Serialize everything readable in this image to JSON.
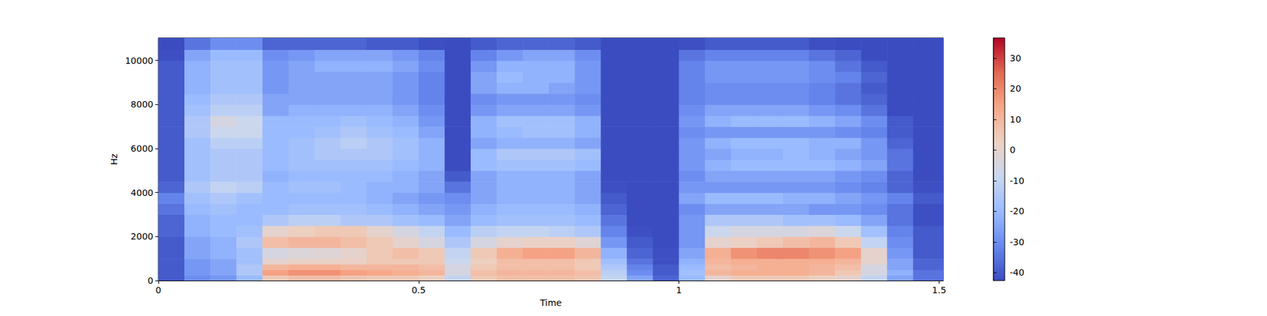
{
  "chart_data": {
    "type": "heatmap",
    "x_label": "Time",
    "y_label": "Hz",
    "xlim": [
      0,
      1.508
    ],
    "xticks": [
      0,
      0.5,
      1,
      1.5
    ],
    "ylim": [
      0,
      11025
    ],
    "yticks": [
      0,
      2000,
      4000,
      6000,
      8000,
      10000
    ],
    "time_edges": [
      0,
      0.05,
      0.1,
      0.15,
      0.2,
      0.25,
      0.3,
      0.35,
      0.4,
      0.45,
      0.5,
      0.55,
      0.6,
      0.65,
      0.7,
      0.75,
      0.8,
      0.85,
      0.9,
      0.95,
      1.0,
      1.05,
      1.1,
      1.15,
      1.2,
      1.25,
      1.3,
      1.35,
      1.4,
      1.45,
      1.508
    ],
    "freq_edges": [
      0,
      250,
      500,
      750,
      1000,
      1500,
      2000,
      2500,
      3000,
      3500,
      4000,
      4500,
      5000,
      5500,
      6000,
      6500,
      7000,
      7500,
      8000,
      8500,
      9000,
      9500,
      10000,
      10500,
      11025
    ],
    "cells": [
      [
        -40,
        -30,
        -28,
        -20,
        5,
        8,
        8,
        6,
        5,
        5,
        3,
        -10,
        5,
        8,
        8,
        8,
        6,
        -10,
        -25,
        -38,
        -20,
        0,
        5,
        5,
        5,
        3,
        0,
        -10,
        -25,
        -35
      ],
      [
        -40,
        -28,
        -25,
        -15,
        15,
        18,
        18,
        15,
        14,
        12,
        10,
        -5,
        8,
        10,
        10,
        10,
        8,
        -12,
        -30,
        -40,
        -18,
        10,
        12,
        12,
        12,
        10,
        5,
        -5,
        -22,
        -35
      ],
      [
        -40,
        -28,
        -25,
        -15,
        10,
        12,
        12,
        10,
        10,
        10,
        8,
        -5,
        5,
        8,
        8,
        8,
        5,
        -15,
        -32,
        -40,
        -20,
        8,
        10,
        12,
        12,
        10,
        8,
        -5,
        -25,
        -38
      ],
      [
        -40,
        -28,
        -25,
        -18,
        0,
        2,
        2,
        2,
        5,
        5,
        5,
        -8,
        3,
        8,
        8,
        8,
        5,
        -18,
        -35,
        -42,
        -22,
        10,
        12,
        12,
        12,
        12,
        10,
        0,
        -25,
        -38
      ],
      [
        -40,
        -25,
        -22,
        -18,
        -5,
        -3,
        -2,
        0,
        5,
        8,
        5,
        -10,
        5,
        12,
        15,
        15,
        10,
        -22,
        -38,
        -42,
        -25,
        12,
        18,
        20,
        20,
        18,
        15,
        0,
        -28,
        -40
      ],
      [
        -40,
        -25,
        -22,
        -15,
        8,
        10,
        10,
        8,
        5,
        0,
        -5,
        -15,
        -5,
        0,
        2,
        2,
        -2,
        -28,
        -40,
        -43,
        -28,
        0,
        2,
        5,
        8,
        10,
        5,
        -10,
        -30,
        -40
      ],
      [
        -38,
        -22,
        -20,
        -18,
        0,
        3,
        5,
        5,
        0,
        -5,
        -10,
        -20,
        -12,
        -10,
        -10,
        -12,
        -15,
        -32,
        -42,
        -43,
        -28,
        -8,
        -5,
        -5,
        -5,
        -3,
        -8,
        -18,
        -32,
        -40
      ],
      [
        -38,
        -22,
        -20,
        -20,
        -15,
        -12,
        -12,
        -15,
        -15,
        -18,
        -20,
        -25,
        -20,
        -18,
        -18,
        -18,
        -20,
        -35,
        -43,
        -43,
        -28,
        -15,
        -15,
        -15,
        -18,
        -18,
        -20,
        -25,
        -35,
        -42
      ],
      [
        -35,
        -20,
        -18,
        -20,
        -20,
        -18,
        -18,
        -18,
        -20,
        -22,
        -25,
        -28,
        -22,
        -20,
        -20,
        -20,
        -22,
        -38,
        -43,
        -43,
        -30,
        -25,
        -25,
        -25,
        -25,
        -28,
        -28,
        -30,
        -35,
        -42
      ],
      [
        -32,
        -18,
        -15,
        -18,
        -20,
        -20,
        -20,
        -20,
        -22,
        -25,
        -28,
        -30,
        -25,
        -22,
        -22,
        -22,
        -25,
        -40,
        -43,
        -43,
        -25,
        -20,
        -20,
        -20,
        -22,
        -22,
        -25,
        -28,
        -32,
        -40
      ],
      [
        -38,
        -15,
        -10,
        -12,
        -20,
        -18,
        -18,
        -20,
        -22,
        -22,
        -25,
        -35,
        -25,
        -22,
        -22,
        -22,
        -25,
        -42,
        -43,
        -43,
        -28,
        -28,
        -28,
        -28,
        -28,
        -28,
        -30,
        -32,
        -38,
        -42
      ],
      [
        -40,
        -18,
        -15,
        -15,
        -22,
        -20,
        -20,
        -20,
        -20,
        -22,
        -25,
        -40,
        -25,
        -22,
        -22,
        -22,
        -25,
        -43,
        -43,
        -43,
        -30,
        -25,
        -25,
        -25,
        -25,
        -25,
        -28,
        -30,
        -38,
        -43
      ],
      [
        -40,
        -18,
        -15,
        -15,
        -20,
        -18,
        -18,
        -18,
        -18,
        -20,
        -22,
        -43,
        -20,
        -18,
        -18,
        -18,
        -20,
        -43,
        -43,
        -43,
        -28,
        -22,
        -20,
        -20,
        -20,
        -20,
        -22,
        -25,
        -35,
        -43
      ],
      [
        -40,
        -18,
        -15,
        -15,
        -20,
        -18,
        -15,
        -15,
        -15,
        -18,
        -22,
        -43,
        -20,
        -15,
        -15,
        -15,
        -18,
        -43,
        -43,
        -43,
        -28,
        -25,
        -22,
        -22,
        -20,
        -22,
        -25,
        -28,
        -35,
        -43
      ],
      [
        -40,
        -18,
        -12,
        -12,
        -20,
        -18,
        -15,
        -12,
        -15,
        -18,
        -22,
        -43,
        -25,
        -22,
        -22,
        -22,
        -25,
        -43,
        -43,
        -43,
        -28,
        -22,
        -20,
        -20,
        -20,
        -22,
        -22,
        -28,
        -38,
        -43
      ],
      [
        -40,
        -15,
        -8,
        -8,
        -20,
        -20,
        -18,
        -15,
        -18,
        -20,
        -25,
        -43,
        -22,
        -20,
        -18,
        -18,
        -22,
        -43,
        -43,
        -43,
        -30,
        -28,
        -28,
        -28,
        -28,
        -28,
        -30,
        -32,
        -40,
        -43
      ],
      [
        -40,
        -15,
        -5,
        -8,
        -20,
        -20,
        -20,
        -18,
        -20,
        -22,
        -28,
        -43,
        -22,
        -18,
        -18,
        -18,
        -22,
        -43,
        -43,
        -43,
        -28,
        -22,
        -20,
        -20,
        -20,
        -22,
        -25,
        -30,
        -40,
        -43
      ],
      [
        -40,
        -18,
        -12,
        -12,
        -25,
        -22,
        -22,
        -22,
        -22,
        -25,
        -30,
        -43,
        -28,
        -25,
        -25,
        -25,
        -28,
        -43,
        -43,
        -43,
        -30,
        -25,
        -25,
        -25,
        -25,
        -28,
        -30,
        -35,
        -43,
        -43
      ],
      [
        -40,
        -20,
        -15,
        -15,
        -25,
        -25,
        -25,
        -25,
        -25,
        -28,
        -32,
        -43,
        -30,
        -28,
        -28,
        -28,
        -30,
        -43,
        -43,
        -43,
        -32,
        -30,
        -30,
        -30,
        -30,
        -32,
        -35,
        -38,
        -43,
        -43
      ],
      [
        -40,
        -22,
        -18,
        -18,
        -28,
        -25,
        -25,
        -25,
        -25,
        -28,
        -32,
        -43,
        -25,
        -22,
        -22,
        -25,
        -28,
        -43,
        -43,
        -43,
        -32,
        -30,
        -30,
        -30,
        -30,
        -32,
        -35,
        -40,
        -43,
        -43
      ],
      [
        -40,
        -22,
        -18,
        -18,
        -28,
        -25,
        -25,
        -25,
        -25,
        -28,
        -32,
        -43,
        -25,
        -20,
        -22,
        -22,
        -28,
        -43,
        -43,
        -43,
        -32,
        -28,
        -28,
        -28,
        -28,
        -30,
        -32,
        -38,
        -43,
        -43
      ],
      [
        -40,
        -22,
        -18,
        -18,
        -28,
        -25,
        -22,
        -22,
        -22,
        -25,
        -30,
        -43,
        -28,
        -22,
        -22,
        -22,
        -28,
        -43,
        -43,
        -43,
        -32,
        -28,
        -28,
        -28,
        -28,
        -30,
        -35,
        -40,
        -43,
        -43
      ],
      [
        -42,
        -25,
        -20,
        -20,
        -30,
        -28,
        -25,
        -25,
        -25,
        -28,
        -32,
        -43,
        -32,
        -28,
        -25,
        -25,
        -30,
        -43,
        -43,
        -43,
        -35,
        -32,
        -32,
        -32,
        -32,
        -35,
        -38,
        -43,
        -43,
        -43
      ],
      [
        -43,
        -35,
        -30,
        -30,
        -38,
        -38,
        -38,
        -38,
        -40,
        -40,
        -42,
        -43,
        -40,
        -38,
        -38,
        -38,
        -40,
        -43,
        -43,
        -43,
        -42,
        -40,
        -40,
        -40,
        -40,
        -42,
        -43,
        -43,
        -43,
        -43
      ]
    ],
    "colorbar_range": [
      -42.6,
      36.6
    ],
    "colorbar_ticks": [
      -40,
      -30,
      -20,
      -10,
      0,
      10,
      20,
      30
    ]
  }
}
